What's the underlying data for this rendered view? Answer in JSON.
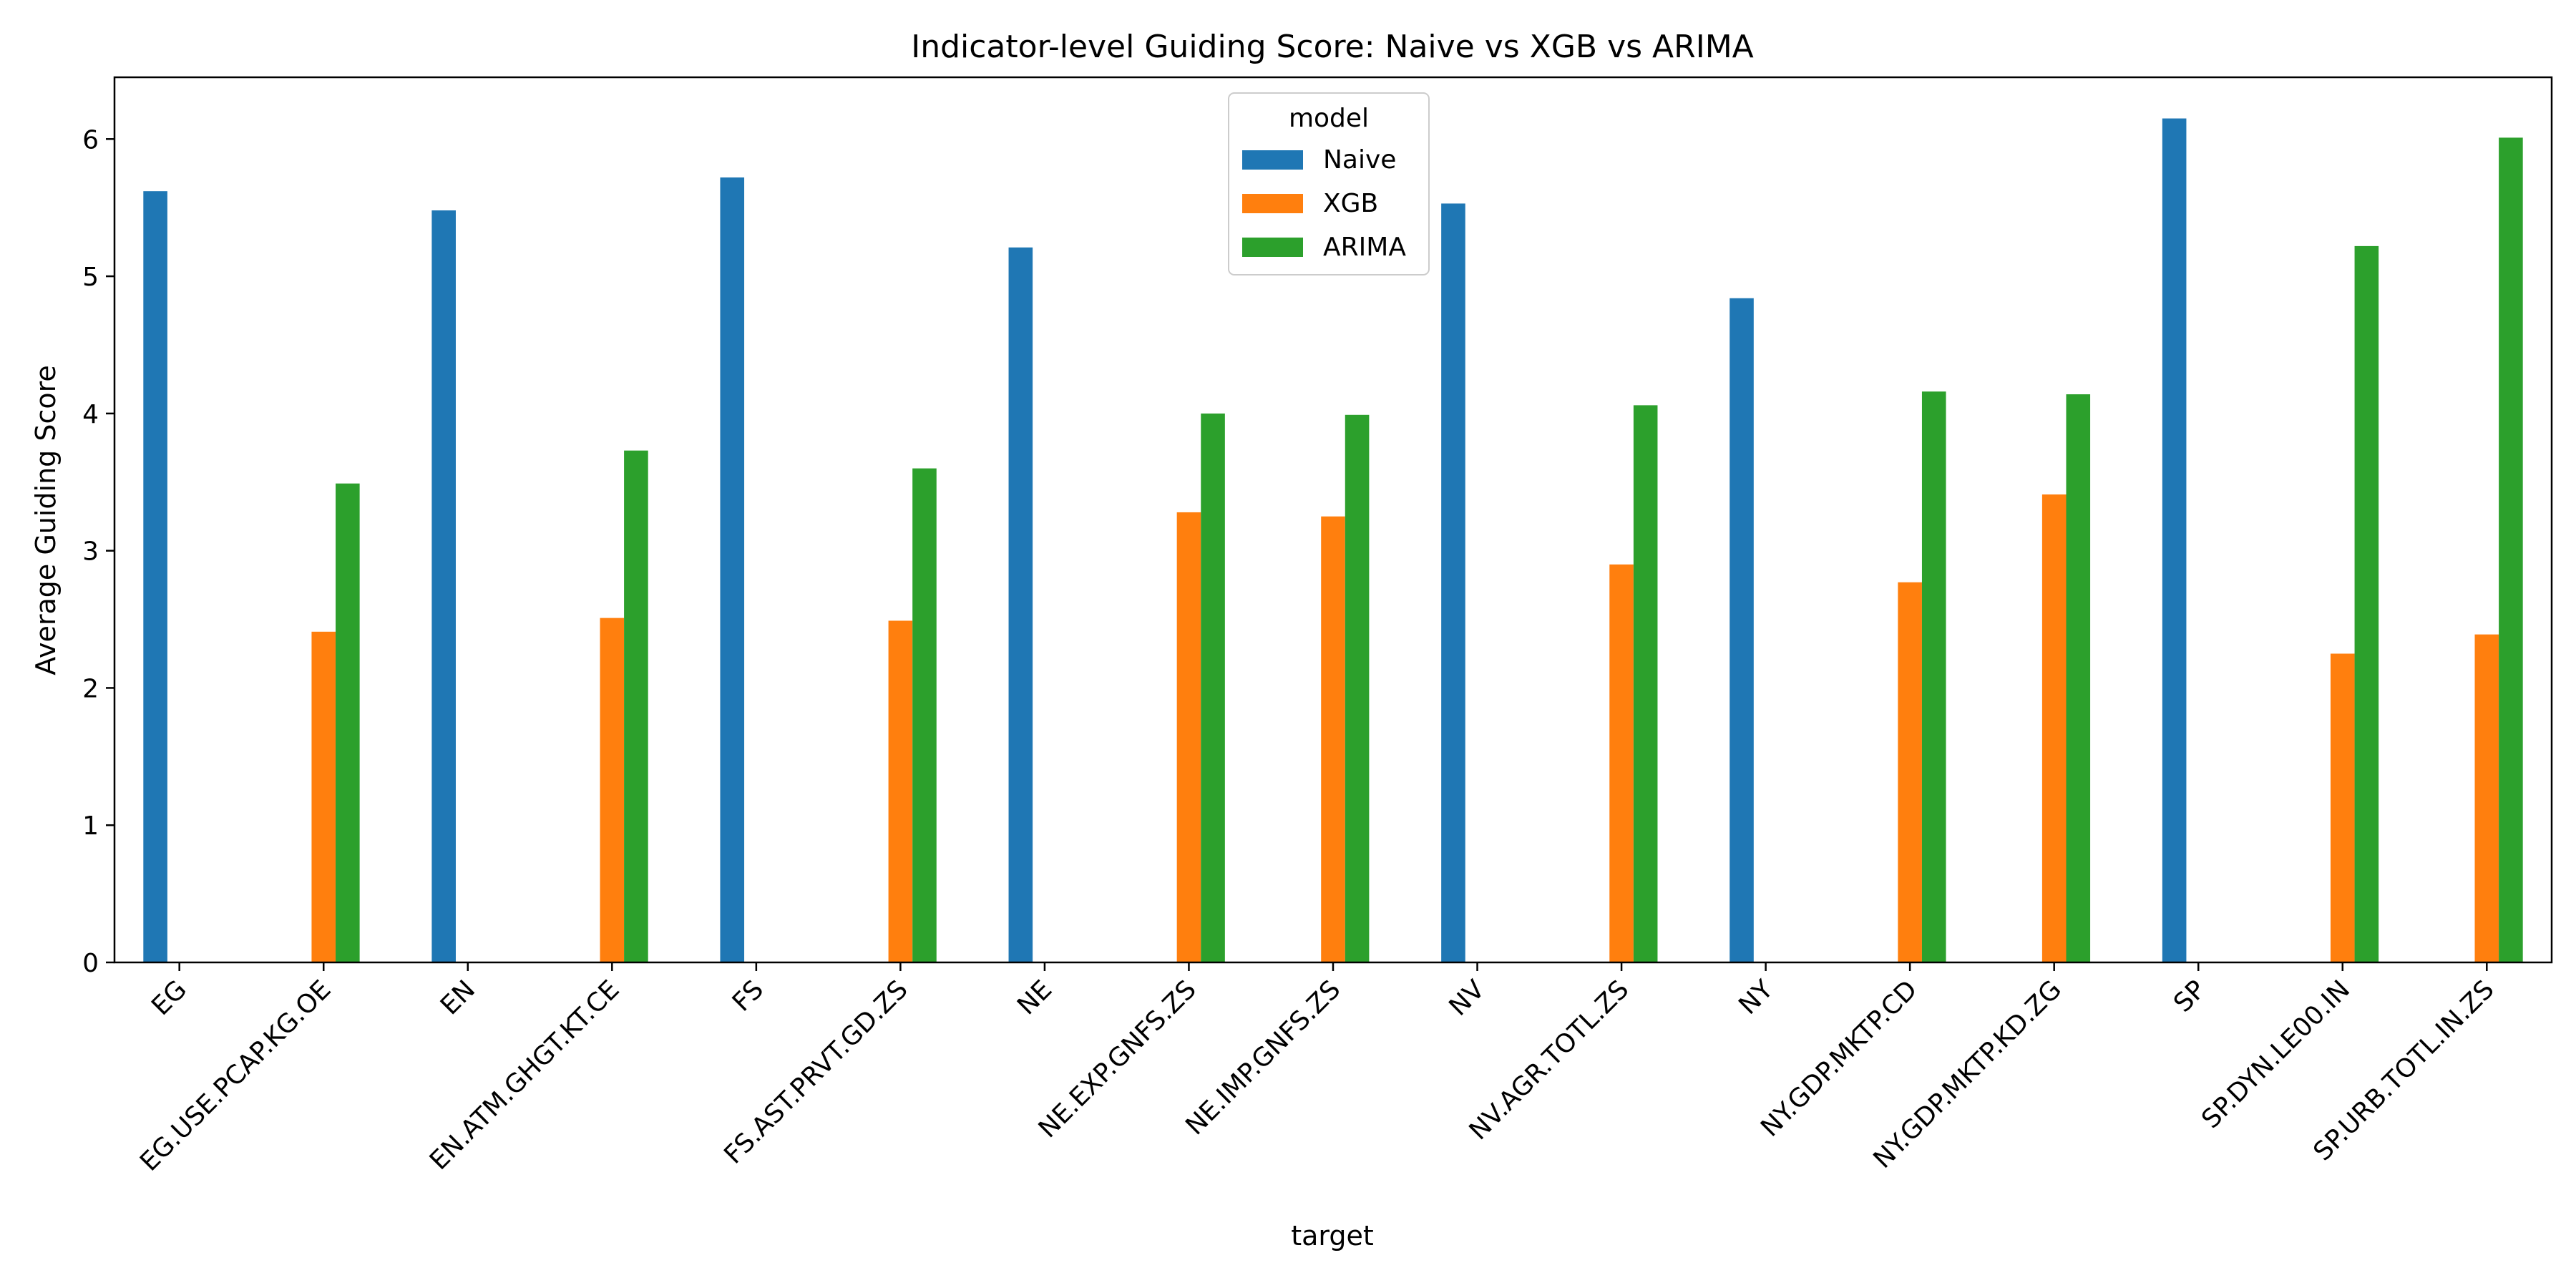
{
  "chart_data": {
    "type": "bar",
    "title": "Indicator-level Guiding Score: Naive vs XGB vs ARIMA",
    "xlabel": "target",
    "ylabel": "Average Guiding Score",
    "ylim": [
      0,
      6.45
    ],
    "yticks": [
      0,
      1,
      2,
      3,
      4,
      5,
      6
    ],
    "grid": false,
    "legend": {
      "title": "model",
      "placement": "top-center"
    },
    "categories": [
      "EG",
      "EG.USE.PCAP.KG.OE",
      "EN",
      "EN.ATM.GHGT.KT.CE",
      "FS",
      "FS.AST.PRVT.GD.ZS",
      "NE",
      "NE.EXP.GNFS.ZS",
      "NE.IMP.GNFS.ZS",
      "NV",
      "NV.AGR.TOTL.ZS",
      "NY",
      "NY.GDP.MKTP.CD",
      "NY.GDP.MKTP.KD.ZG",
      "SP",
      "SP.DYN.LE00.IN",
      "SP.URB.TOTL.IN.ZS"
    ],
    "series": [
      {
        "name": "Naive",
        "color": "#1f77b4",
        "values": [
          5.62,
          null,
          5.48,
          null,
          5.72,
          null,
          5.21,
          null,
          null,
          5.53,
          null,
          4.84,
          null,
          null,
          6.15,
          null,
          null
        ]
      },
      {
        "name": "XGB",
        "color": "#ff7f0e",
        "values": [
          null,
          2.41,
          null,
          2.51,
          null,
          2.49,
          null,
          3.28,
          3.25,
          null,
          2.9,
          null,
          2.77,
          3.41,
          null,
          2.25,
          2.39
        ]
      },
      {
        "name": "ARIMA",
        "color": "#2ca02c",
        "values": [
          null,
          3.49,
          null,
          3.73,
          null,
          3.6,
          null,
          4.0,
          3.99,
          null,
          4.06,
          null,
          4.16,
          4.14,
          null,
          5.22,
          6.01
        ]
      }
    ]
  }
}
